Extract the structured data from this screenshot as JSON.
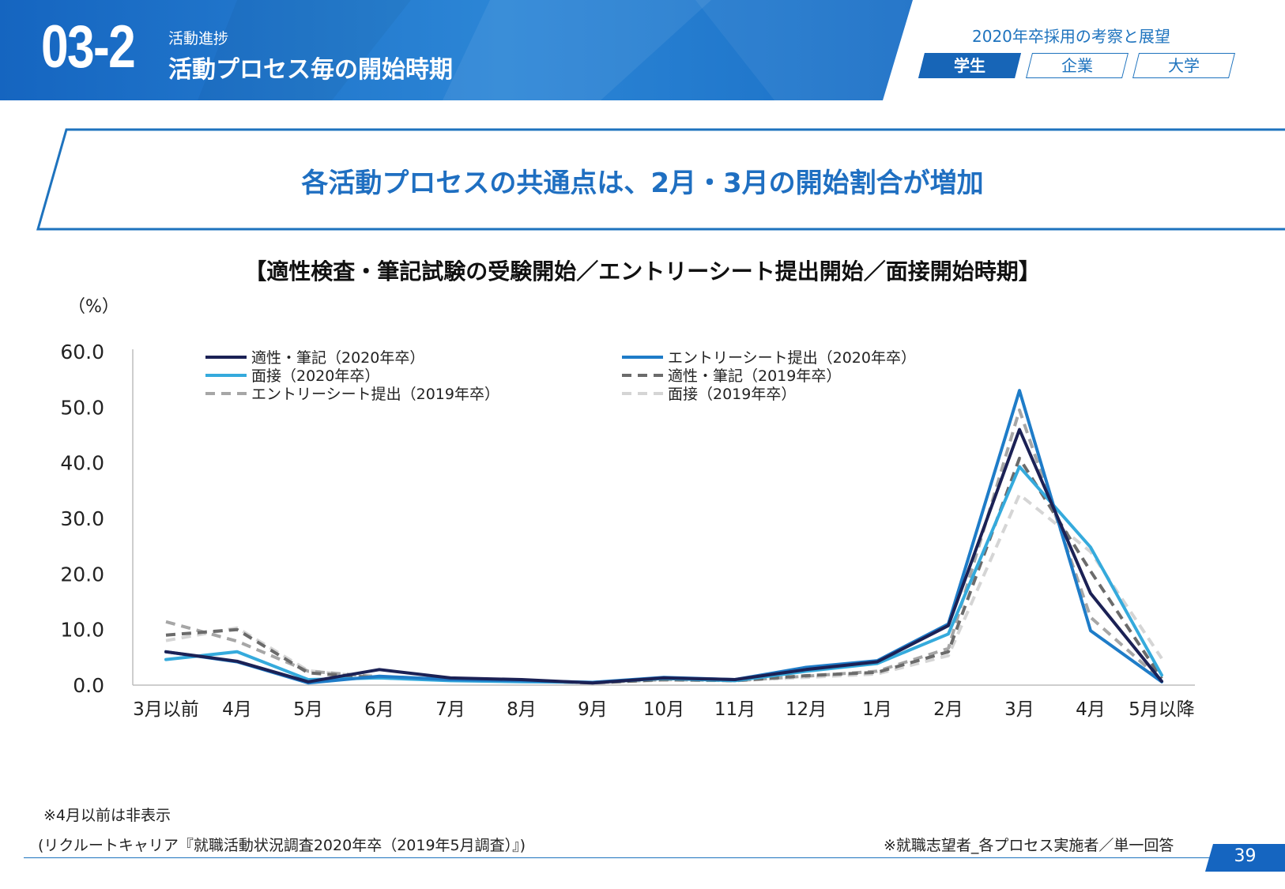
{
  "header": {
    "section_number": "03-2",
    "section_sub": "活動進捗",
    "section_title": "活動プロセス毎の開始時期",
    "series_title": "2020年卒採用の考察と展望",
    "tabs": [
      {
        "label": "学生",
        "active": true
      },
      {
        "label": "企業",
        "active": false
      },
      {
        "label": "大学",
        "active": false
      }
    ]
  },
  "banner": {
    "text": "各活動プロセスの共通点は、2月・3月の開始割合が増加"
  },
  "chart_title": "【適性検査・筆記試験の受験開始／エントリーシート提出開始／面接開始時期】",
  "unit_label": "（%）",
  "chart_data": {
    "type": "line",
    "categories": [
      "3月以前",
      "4月",
      "5月",
      "6月",
      "7月",
      "8月",
      "9月",
      "10月",
      "11月",
      "12月",
      "1月",
      "2月",
      "3月",
      "4月",
      "5月以降"
    ],
    "ylim": [
      0,
      60
    ],
    "yticks": [
      "0.0",
      "10.0",
      "20.0",
      "30.0",
      "40.0",
      "50.0",
      "60.0"
    ],
    "grid": false,
    "legend_position": "top",
    "series": [
      {
        "name": "適性・筆記（2020年卒）",
        "color": "#1b2155",
        "dashed": false,
        "values": [
          6.0,
          4.3,
          0.6,
          2.8,
          1.3,
          1.0,
          0.4,
          1.3,
          1.0,
          2.8,
          4.2,
          10.7,
          46.0,
          16.5,
          0.7
        ]
      },
      {
        "name": "エントリーシート提出（2020年卒）",
        "color": "#1e7cc8",
        "dashed": false,
        "values": [
          6.0,
          4.2,
          0.4,
          1.6,
          1.0,
          0.8,
          0.5,
          1.4,
          1.0,
          3.2,
          4.4,
          11.0,
          53.0,
          9.8,
          0.6
        ]
      },
      {
        "name": "面接（2020年卒）",
        "color": "#35aadc",
        "dashed": false,
        "values": [
          4.6,
          6.0,
          1.0,
          1.3,
          0.8,
          0.6,
          0.5,
          1.2,
          0.8,
          2.5,
          3.9,
          9.2,
          39.3,
          24.8,
          1.8
        ]
      },
      {
        "name": "適性・筆記（2019年卒）",
        "color": "#6b6b6b",
        "dashed": true,
        "values": [
          9.0,
          10.0,
          2.2,
          1.3,
          1.0,
          0.8,
          0.4,
          1.0,
          0.8,
          1.7,
          2.3,
          6.0,
          40.8,
          20.5,
          1.2
        ]
      },
      {
        "name": "エントリーシート提出（2019年卒）",
        "color": "#a6a6a6",
        "dashed": true,
        "values": [
          11.4,
          7.9,
          2.5,
          1.5,
          1.0,
          0.8,
          0.4,
          1.0,
          0.8,
          1.6,
          2.5,
          6.6,
          49.5,
          12.2,
          0.9
        ]
      },
      {
        "name": "面接（2019年卒）",
        "color": "#d5d5d5",
        "dashed": true,
        "values": [
          8.0,
          10.3,
          2.6,
          1.3,
          0.9,
          0.7,
          0.4,
          0.9,
          0.8,
          1.4,
          2.0,
          5.3,
          34.3,
          24.0,
          4.8
        ]
      }
    ]
  },
  "notes": {
    "hidden_note": "※4月以前は非表示",
    "source": "(リクルートキャリア『就職活動状況調査2020年卒（2019年5月調査）』)",
    "respondents": "※就職志望者_各プロセス実施者／単一回答"
  },
  "page_number": "39",
  "colors": {
    "brand_blue": "#1e73be",
    "header_dark": "#1565c0",
    "header_light": "#4a9ee0"
  }
}
